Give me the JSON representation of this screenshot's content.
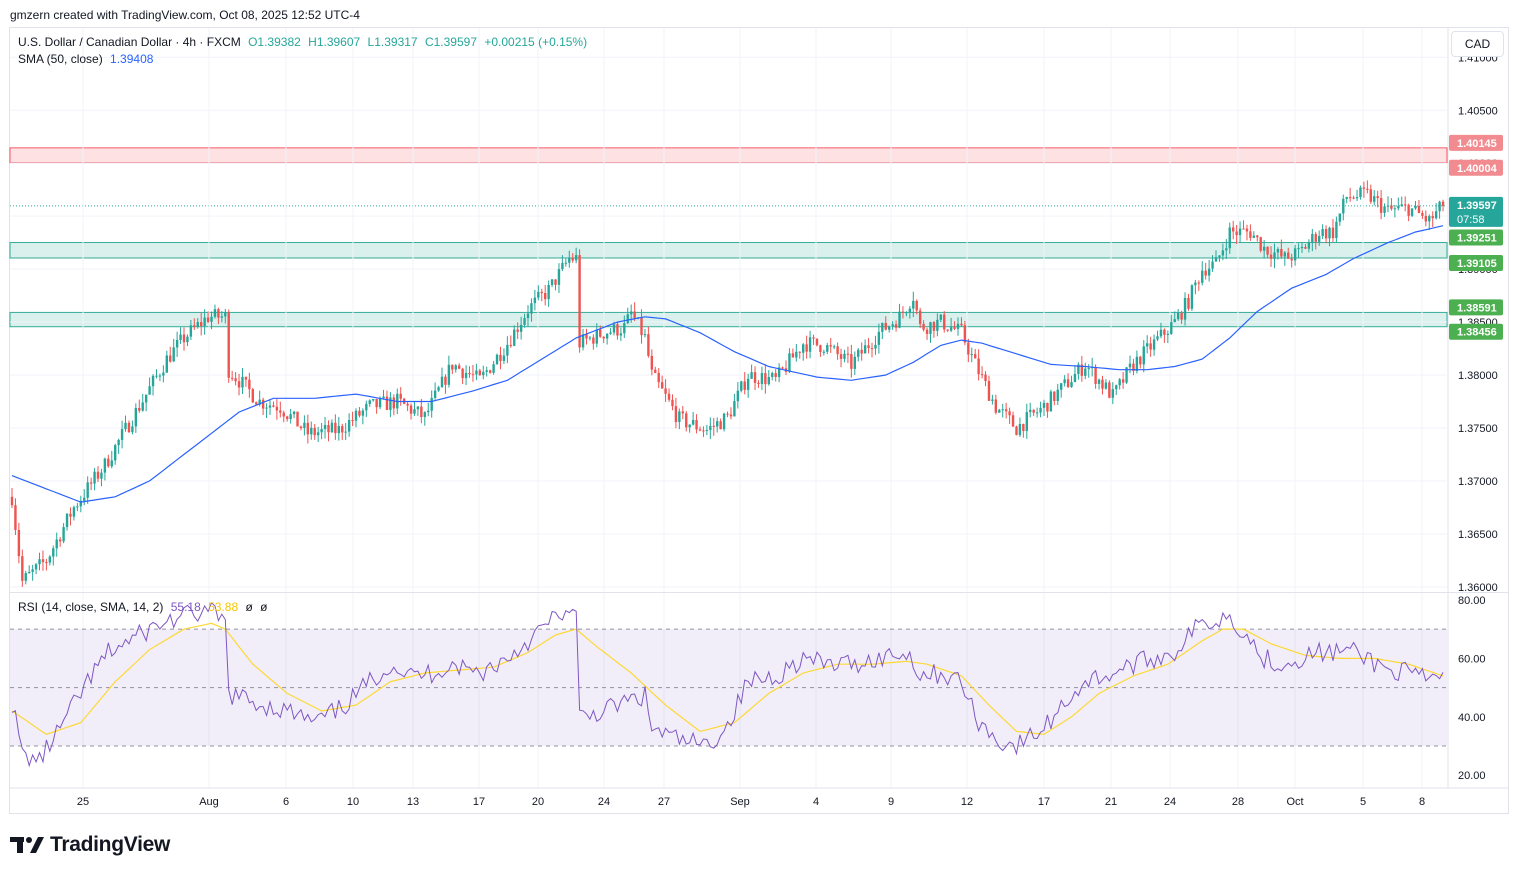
{
  "header": {
    "attribution": "gmzern created with TradingView.com, Oct 08, 2025 12:52 UTC-4",
    "symbol": "U.S. Dollar / Canadian Dollar · 4h · FXCM",
    "ohlc_open": "O1.39382",
    "ohlc_high": "H1.39607",
    "ohlc_low": "L1.39317",
    "ohlc_close": "C1.39597",
    "change": "+0.00215 (+0.15%)",
    "sma_label": "SMA (50, close)",
    "sma_value": "1.39408",
    "rsi_label": "RSI (14, close, SMA, 14, 2)",
    "rsi_value": "55.18",
    "rsi_sma_value": "53.88",
    "rsi_extra1": "ø",
    "rsi_extra2": "ø"
  },
  "currency_button": "CAD",
  "brand": "TradingView",
  "colors": {
    "up": "#26a69a",
    "down": "#ef5350",
    "sma": "#2962ff",
    "rsi": "#7e57c2",
    "rsi_sma": "#fdd835",
    "resistance_zone": "#f23645",
    "support_zone": "#089981"
  },
  "chart_data": [
    {
      "type": "candlestick",
      "title": "U.S. Dollar / Canadian Dollar · 4h · FXCM",
      "price_axis": {
        "ticks": [
          "1.41000",
          "1.40500",
          "1.40000",
          "1.39500",
          "1.39000",
          "1.38500",
          "1.38000",
          "1.37500",
          "1.37000",
          "1.36500",
          "1.36000"
        ],
        "range": [
          1.3597,
          1.4122
        ]
      },
      "x_ticks": [
        "25",
        "Aug",
        "6",
        "10",
        "13",
        "17",
        "20",
        "24",
        "27",
        "Sep",
        "4",
        "9",
        "12",
        "17",
        "21",
        "24",
        "28",
        "Oct",
        "5",
        "8"
      ],
      "price_labels": [
        {
          "text": "1.40145",
          "value": 1.40145,
          "kind": "zone-top"
        },
        {
          "text": "1.40004",
          "value": 1.40004,
          "kind": "zone-bottom"
        },
        {
          "text": "1.39597",
          "value": 1.39597,
          "kind": "last",
          "countdown": "07:58"
        },
        {
          "text": "1.39251",
          "value": 1.39251,
          "kind": "zone-top"
        },
        {
          "text": "1.39105",
          "value": 1.39105,
          "kind": "zone-bottom"
        },
        {
          "text": "1.38591",
          "value": 1.38591,
          "kind": "zone-top"
        },
        {
          "text": "1.38456",
          "value": 1.38456,
          "kind": "zone-bottom"
        }
      ],
      "zones": [
        {
          "top": 1.40145,
          "bottom": 1.40004,
          "color": "#f23645"
        },
        {
          "top": 1.39251,
          "bottom": 1.39105,
          "color": "#089981"
        },
        {
          "top": 1.38591,
          "bottom": 1.38456,
          "color": "#089981"
        }
      ],
      "last_price": 1.39597,
      "close_path": [
        [
          0,
          1.3685
        ],
        [
          3,
          1.3605
        ],
        [
          10,
          1.3625
        ],
        [
          18,
          1.3675
        ],
        [
          27,
          1.3715
        ],
        [
          36,
          1.3765
        ],
        [
          45,
          1.3815
        ],
        [
          50,
          1.3835
        ],
        [
          57,
          1.3855
        ],
        [
          62,
          1.3855
        ],
        [
          63,
          1.3805
        ],
        [
          72,
          1.3775
        ],
        [
          78,
          1.377
        ],
        [
          86,
          1.3745
        ],
        [
          95,
          1.3748
        ],
        [
          104,
          1.377
        ],
        [
          112,
          1.3775
        ],
        [
          120,
          1.376
        ],
        [
          128,
          1.381
        ],
        [
          136,
          1.3795
        ],
        [
          144,
          1.383
        ],
        [
          150,
          1.3862
        ],
        [
          156,
          1.388
        ],
        [
          162,
          1.391
        ],
        [
          164,
          1.391
        ],
        [
          165,
          1.383
        ],
        [
          172,
          1.384
        ],
        [
          178,
          1.3845
        ],
        [
          180,
          1.3858
        ],
        [
          184,
          1.3835
        ],
        [
          186,
          1.38
        ],
        [
          194,
          1.3758
        ],
        [
          202,
          1.3748
        ],
        [
          208,
          1.376
        ],
        [
          214,
          1.38
        ],
        [
          222,
          1.3795
        ],
        [
          230,
          1.383
        ],
        [
          236,
          1.3828
        ],
        [
          244,
          1.381
        ],
        [
          252,
          1.384
        ],
        [
          258,
          1.3855
        ],
        [
          262,
          1.3875
        ],
        [
          264,
          1.3845
        ],
        [
          270,
          1.385
        ],
        [
          276,
          1.384
        ],
        [
          280,
          1.381
        ],
        [
          286,
          1.377
        ],
        [
          292,
          1.375
        ],
        [
          300,
          1.377
        ],
        [
          306,
          1.379
        ],
        [
          312,
          1.381
        ],
        [
          320,
          1.378
        ],
        [
          326,
          1.381
        ],
        [
          332,
          1.383
        ],
        [
          338,
          1.385
        ],
        [
          342,
          1.387
        ],
        [
          346,
          1.39
        ],
        [
          350,
          1.3905
        ],
        [
          354,
          1.3935
        ],
        [
          360,
          1.3935
        ],
        [
          364,
          1.392
        ],
        [
          370,
          1.391
        ],
        [
          374,
          1.3915
        ],
        [
          380,
          1.3935
        ],
        [
          384,
          1.3935
        ],
        [
          388,
          1.3968
        ],
        [
          394,
          1.397
        ],
        [
          400,
          1.3955
        ],
        [
          406,
          1.3958
        ],
        [
          412,
          1.3945
        ],
        [
          416,
          1.396
        ]
      ],
      "sma_path": [
        [
          0,
          1.3705
        ],
        [
          20,
          1.368
        ],
        [
          30,
          1.3685
        ],
        [
          40,
          1.37
        ],
        [
          50,
          1.3725
        ],
        [
          58,
          1.3745
        ],
        [
          66,
          1.3765
        ],
        [
          76,
          1.3778
        ],
        [
          88,
          1.3778
        ],
        [
          100,
          1.3782
        ],
        [
          112,
          1.3775
        ],
        [
          122,
          1.3775
        ],
        [
          134,
          1.3785
        ],
        [
          144,
          1.3795
        ],
        [
          154,
          1.3815
        ],
        [
          164,
          1.3835
        ],
        [
          176,
          1.385
        ],
        [
          184,
          1.3855
        ],
        [
          190,
          1.3853
        ],
        [
          200,
          1.384
        ],
        [
          210,
          1.3822
        ],
        [
          220,
          1.3808
        ],
        [
          234,
          1.3798
        ],
        [
          244,
          1.3795
        ],
        [
          254,
          1.38
        ],
        [
          262,
          1.3812
        ],
        [
          270,
          1.3828
        ],
        [
          276,
          1.3833
        ],
        [
          282,
          1.383
        ],
        [
          292,
          1.382
        ],
        [
          302,
          1.381
        ],
        [
          312,
          1.3808
        ],
        [
          322,
          1.3805
        ],
        [
          330,
          1.3805
        ],
        [
          338,
          1.3808
        ],
        [
          346,
          1.3815
        ],
        [
          354,
          1.3835
        ],
        [
          362,
          1.386
        ],
        [
          372,
          1.3882
        ],
        [
          382,
          1.3895
        ],
        [
          390,
          1.391
        ],
        [
          400,
          1.3925
        ],
        [
          408,
          1.3935
        ],
        [
          416,
          1.3941
        ]
      ]
    },
    {
      "type": "line",
      "title": "RSI (14, close, SMA, 14, 2)",
      "y_ticks": [
        "80.00",
        "60.00",
        "40.00",
        "20.00"
      ],
      "ylim": [
        17,
        81
      ],
      "bands": {
        "upper": 70,
        "middle": 50,
        "lower": 30
      },
      "rsi_path": [
        [
          0,
          45
        ],
        [
          3,
          27
        ],
        [
          8,
          25
        ],
        [
          15,
          38
        ],
        [
          22,
          52
        ],
        [
          28,
          62
        ],
        [
          34,
          66
        ],
        [
          40,
          70
        ],
        [
          46,
          73
        ],
        [
          52,
          75
        ],
        [
          58,
          76
        ],
        [
          62,
          72
        ],
        [
          63,
          48
        ],
        [
          70,
          45
        ],
        [
          80,
          42
        ],
        [
          88,
          38
        ],
        [
          96,
          43
        ],
        [
          104,
          52
        ],
        [
          110,
          58
        ],
        [
          116,
          54
        ],
        [
          122,
          55
        ],
        [
          128,
          58
        ],
        [
          136,
          55
        ],
        [
          144,
          60
        ],
        [
          152,
          68
        ],
        [
          156,
          72
        ],
        [
          160,
          76
        ],
        [
          164,
          74
        ],
        [
          165,
          40
        ],
        [
          172,
          42
        ],
        [
          178,
          45
        ],
        [
          184,
          47
        ],
        [
          186,
          36
        ],
        [
          194,
          32
        ],
        [
          202,
          30
        ],
        [
          208,
          37
        ],
        [
          214,
          52
        ],
        [
          222,
          54
        ],
        [
          230,
          60
        ],
        [
          236,
          58
        ],
        [
          244,
          58
        ],
        [
          252,
          60
        ],
        [
          258,
          62
        ],
        [
          262,
          60
        ],
        [
          264,
          54
        ],
        [
          270,
          55
        ],
        [
          276,
          52
        ],
        [
          280,
          40
        ],
        [
          286,
          32
        ],
        [
          292,
          30
        ],
        [
          300,
          36
        ],
        [
          306,
          45
        ],
        [
          312,
          52
        ],
        [
          320,
          55
        ],
        [
          326,
          58
        ],
        [
          332,
          60
        ],
        [
          338,
          62
        ],
        [
          342,
          68
        ],
        [
          346,
          72
        ],
        [
          350,
          73
        ],
        [
          354,
          75
        ],
        [
          360,
          66
        ],
        [
          364,
          60
        ],
        [
          370,
          58
        ],
        [
          374,
          60
        ],
        [
          380,
          62
        ],
        [
          384,
          62
        ],
        [
          388,
          63
        ],
        [
          394,
          60
        ],
        [
          400,
          56
        ],
        [
          406,
          55
        ],
        [
          412,
          52
        ],
        [
          416,
          55
        ]
      ],
      "rsi_sma_path": [
        [
          0,
          42
        ],
        [
          10,
          34
        ],
        [
          20,
          38
        ],
        [
          30,
          52
        ],
        [
          40,
          63
        ],
        [
          50,
          70
        ],
        [
          58,
          72
        ],
        [
          62,
          70
        ],
        [
          70,
          58
        ],
        [
          80,
          48
        ],
        [
          90,
          42
        ],
        [
          100,
          44
        ],
        [
          110,
          52
        ],
        [
          120,
          55
        ],
        [
          130,
          56
        ],
        [
          140,
          57
        ],
        [
          150,
          62
        ],
        [
          158,
          68
        ],
        [
          164,
          70
        ],
        [
          170,
          64
        ],
        [
          180,
          55
        ],
        [
          190,
          44
        ],
        [
          200,
          35
        ],
        [
          210,
          38
        ],
        [
          220,
          48
        ],
        [
          230,
          55
        ],
        [
          240,
          58
        ],
        [
          250,
          58
        ],
        [
          260,
          59
        ],
        [
          266,
          58
        ],
        [
          276,
          54
        ],
        [
          284,
          44
        ],
        [
          292,
          35
        ],
        [
          300,
          34
        ],
        [
          308,
          40
        ],
        [
          316,
          48
        ],
        [
          326,
          54
        ],
        [
          336,
          58
        ],
        [
          346,
          66
        ],
        [
          352,
          70
        ],
        [
          358,
          70
        ],
        [
          366,
          65
        ],
        [
          376,
          61
        ],
        [
          386,
          60
        ],
        [
          396,
          60
        ],
        [
          406,
          58
        ],
        [
          416,
          54
        ]
      ]
    }
  ]
}
